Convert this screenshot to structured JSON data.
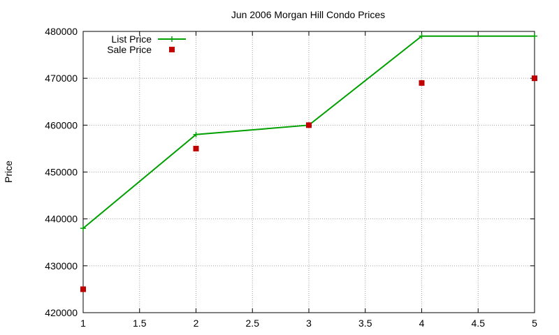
{
  "chart_data": {
    "type": "line",
    "title": "Jun 2006 Morgan Hill Condo Prices",
    "xlabel": "",
    "ylabel": "Price",
    "xlim": [
      1,
      5
    ],
    "ylim": [
      420000,
      480000
    ],
    "x_ticks": [
      "1",
      "1.5",
      "2",
      "2.5",
      "3",
      "3.5",
      "4",
      "4.5",
      "5"
    ],
    "y_ticks": [
      "420000",
      "430000",
      "440000",
      "450000",
      "460000",
      "470000",
      "480000"
    ],
    "grid": true,
    "legend_position": "top-left",
    "series": [
      {
        "name": "List Price",
        "style": "lines+points",
        "marker": "plus",
        "color": "#00a000",
        "x": [
          1,
          2,
          3,
          4,
          5
        ],
        "y": [
          438000,
          458000,
          460000,
          479000,
          479000
        ]
      },
      {
        "name": "Sale Price",
        "style": "points",
        "marker": "square",
        "color": "#c00000",
        "x": [
          1,
          2,
          3,
          4,
          5
        ],
        "y": [
          425000,
          455000,
          460000,
          469000,
          470000
        ]
      }
    ]
  }
}
